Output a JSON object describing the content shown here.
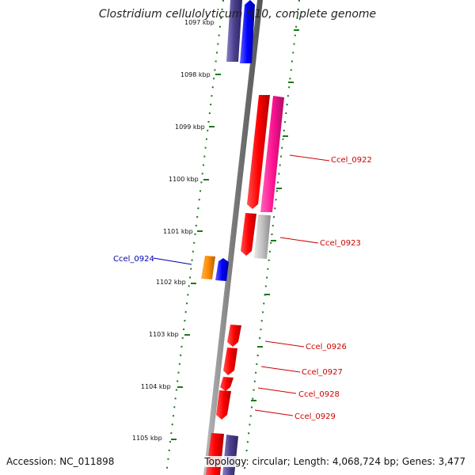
{
  "title": "Clostridium cellulolyticum H10, complete genome",
  "footer": {
    "accession": "Accession: NC_011898",
    "summary": "Topology: circular; Length: 4,068,724 bp; Genes: 3,477"
  },
  "ticks": [
    "1097 kbp",
    "1098 kbp",
    "1099 kbp",
    "1100 kbp",
    "1101 kbp",
    "1102 kbp",
    "1103 kbp",
    "1104 kbp",
    "1105 kbp"
  ],
  "gene_labels": [
    {
      "id": "Ccel_0922",
      "color": "#cc0000"
    },
    {
      "id": "Ccel_0923",
      "color": "#cc0000"
    },
    {
      "id": "Ccel_0924",
      "color": "#0000aa"
    },
    {
      "id": "Ccel_0926",
      "color": "#cc0000"
    },
    {
      "id": "Ccel_0927",
      "color": "#cc0000"
    },
    {
      "id": "Ccel_0928",
      "color": "#cc0000"
    },
    {
      "id": "Ccel_0929",
      "color": "#cc0000"
    }
  ],
  "colors": {
    "backbone": "#888888",
    "tick_marks": "#1a7a1a",
    "red_gene": "#ff0000",
    "magenta_gene": "#ff1493",
    "blue_gene": "#0000ff",
    "navy_gene": "#4a3f8c",
    "orange_gene": "#ff8c00",
    "grey_gene": "#c0c0c0"
  }
}
